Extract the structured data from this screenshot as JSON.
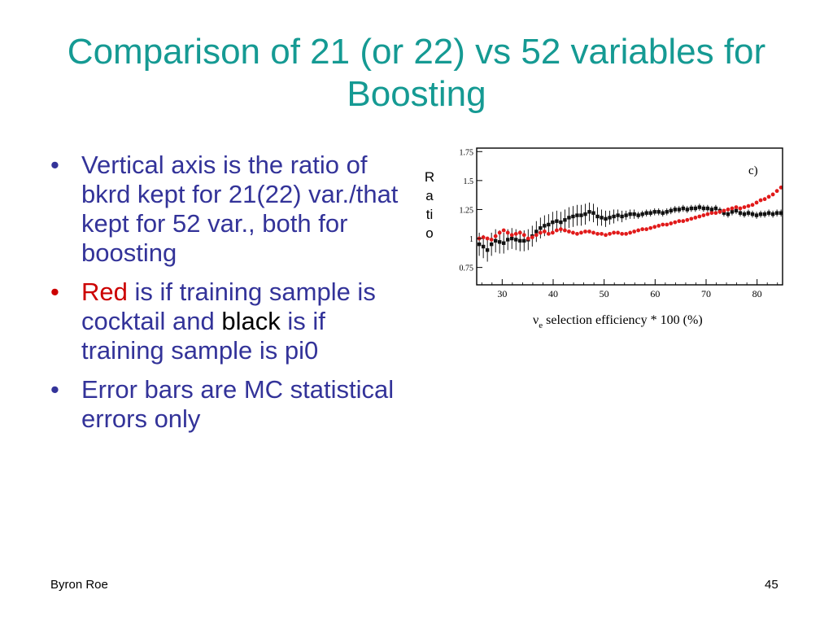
{
  "slide": {
    "title": "Comparison of 21 (or 22) vs 52 variables for Boosting",
    "bullets": {
      "b1": "Vertical axis is the ratio of bkrd kept for 21(22) var./that kept for 52 var., both for boosting",
      "b2_red": "Red",
      "b2_mid": " is if training sample is cocktail and ",
      "b2_black": "black",
      "b2_end": " is if training sample is pi0",
      "b3": "Error bars are MC statistical errors only"
    },
    "ratio_label": [
      "R",
      "a",
      "ti",
      "o"
    ],
    "footer": {
      "author": "Byron Roe",
      "page": "45"
    },
    "bullet_glyph": "•",
    "colors": {
      "title": "#159a93",
      "text": "#333399",
      "red": "#cc0000",
      "black": "#000000"
    }
  },
  "chart_data": {
    "type": "scatter",
    "panel_label": "c)",
    "xlabel": "ν_e selection efficiency * 100 (%)",
    "xlabel_main": "ν",
    "xlabel_sub": "e",
    "xlabel_rest": " selection efficiency * 100 (%)",
    "xlim": [
      25,
      85
    ],
    "ylim": [
      0.6,
      1.78
    ],
    "x_ticks": [
      30,
      40,
      50,
      60,
      70,
      80
    ],
    "y_ticks": [
      "0.75",
      "1",
      "1.25",
      "1.5",
      "1.75"
    ],
    "series": [
      {
        "color": "#e11a1a",
        "x": [
          25.5,
          26.3,
          27.1,
          27.9,
          28.7,
          29.5,
          30.3,
          31.1,
          31.9,
          32.7,
          33.5,
          34.3,
          35.1,
          35.9,
          36.7,
          37.5,
          38.3,
          39.1,
          39.9,
          40.7,
          41.5,
          42.3,
          43.1,
          43.9,
          44.7,
          45.5,
          46.3,
          47.1,
          47.9,
          48.7,
          49.5,
          50.3,
          51.1,
          51.9,
          52.7,
          53.5,
          54.3,
          55.1,
          55.9,
          56.7,
          57.5,
          58.3,
          59.1,
          59.9,
          60.7,
          61.5,
          62.3,
          63.1,
          63.9,
          64.7,
          65.5,
          66.3,
          67.1,
          67.9,
          68.7,
          69.5,
          70.3,
          71.1,
          71.9,
          72.7,
          73.5,
          74.3,
          75.1,
          75.9,
          76.7,
          77.5,
          78.3,
          79.1,
          79.9,
          80.7,
          81.5,
          82.3,
          83.1,
          83.9,
          84.7
        ],
        "y": [
          1.0,
          1.01,
          1.0,
          0.99,
          1.02,
          1.05,
          1.07,
          1.05,
          1.03,
          1.04,
          1.05,
          1.03,
          1.0,
          1.01,
          1.03,
          1.05,
          1.06,
          1.04,
          1.05,
          1.07,
          1.08,
          1.07,
          1.06,
          1.05,
          1.04,
          1.05,
          1.06,
          1.06,
          1.05,
          1.04,
          1.04,
          1.03,
          1.04,
          1.05,
          1.05,
          1.04,
          1.04,
          1.05,
          1.06,
          1.07,
          1.08,
          1.08,
          1.09,
          1.1,
          1.11,
          1.12,
          1.12,
          1.13,
          1.14,
          1.15,
          1.15,
          1.16,
          1.17,
          1.18,
          1.19,
          1.2,
          1.21,
          1.22,
          1.22,
          1.23,
          1.24,
          1.25,
          1.26,
          1.27,
          1.26,
          1.27,
          1.28,
          1.29,
          1.31,
          1.33,
          1.34,
          1.36,
          1.38,
          1.41,
          1.44
        ]
      },
      {
        "color": "#111111",
        "x": [
          25.5,
          26.3,
          27.1,
          27.9,
          28.7,
          29.5,
          30.3,
          31.1,
          31.9,
          32.7,
          33.5,
          34.3,
          35.1,
          35.9,
          36.7,
          37.5,
          38.3,
          39.1,
          39.9,
          40.7,
          41.5,
          42.3,
          43.1,
          43.9,
          44.7,
          45.5,
          46.3,
          47.1,
          47.9,
          48.7,
          49.5,
          50.3,
          51.1,
          51.9,
          52.7,
          53.5,
          54.3,
          55.1,
          55.9,
          56.7,
          57.5,
          58.3,
          59.1,
          59.9,
          60.7,
          61.5,
          62.3,
          63.1,
          63.9,
          64.7,
          65.5,
          66.3,
          67.1,
          67.9,
          68.7,
          69.5,
          70.3,
          71.1,
          71.9,
          72.7,
          73.5,
          74.3,
          75.1,
          75.9,
          76.7,
          77.5,
          78.3,
          79.1,
          79.9,
          80.7,
          81.5,
          82.3,
          83.1,
          83.9,
          84.7
        ],
        "y": [
          0.95,
          0.93,
          0.9,
          0.95,
          0.98,
          0.97,
          0.96,
          0.99,
          1.0,
          0.99,
          0.98,
          0.98,
          0.99,
          1.02,
          1.06,
          1.09,
          1.11,
          1.12,
          1.14,
          1.15,
          1.14,
          1.16,
          1.18,
          1.19,
          1.2,
          1.2,
          1.21,
          1.23,
          1.22,
          1.19,
          1.18,
          1.17,
          1.18,
          1.19,
          1.2,
          1.19,
          1.2,
          1.21,
          1.21,
          1.2,
          1.21,
          1.22,
          1.22,
          1.23,
          1.23,
          1.22,
          1.23,
          1.24,
          1.25,
          1.25,
          1.26,
          1.25,
          1.26,
          1.26,
          1.27,
          1.26,
          1.26,
          1.25,
          1.26,
          1.24,
          1.22,
          1.21,
          1.23,
          1.24,
          1.22,
          1.21,
          1.22,
          1.21,
          1.2,
          1.21,
          1.21,
          1.22,
          1.21,
          1.22,
          1.22
        ],
        "err": [
          0.1,
          0.1,
          0.1,
          0.1,
          0.1,
          0.1,
          0.09,
          0.09,
          0.09,
          0.09,
          0.09,
          0.09,
          0.09,
          0.09,
          0.09,
          0.09,
          0.09,
          0.09,
          0.09,
          0.09,
          0.09,
          0.09,
          0.09,
          0.09,
          0.09,
          0.09,
          0.09,
          0.08,
          0.08,
          0.08,
          0.07,
          0.07,
          0.06,
          0.06,
          0.05,
          0.05,
          0.04,
          0.04,
          0.04,
          0.03,
          0.03,
          0.03,
          0.03,
          0.03,
          0.03,
          0.03,
          0.03,
          0.03,
          0.03,
          0.03,
          0.03,
          0.03,
          0.03,
          0.03,
          0.03,
          0.03,
          0.03,
          0.03,
          0.03,
          0.03,
          0.03,
          0.03,
          0.03,
          0.03,
          0.03,
          0.03,
          0.03,
          0.03,
          0.03,
          0.03,
          0.03,
          0.03,
          0.03,
          0.03,
          0.03
        ]
      }
    ]
  }
}
